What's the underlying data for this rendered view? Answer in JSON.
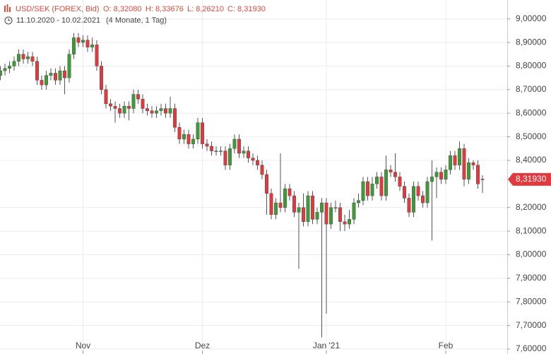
{
  "header": {
    "symbol": "USD/SEK (FOREX, Bid)",
    "open": "O: 8,32080",
    "high": "H: 8,33676",
    "low": "L: 8,26210",
    "close": "C: 8,31930",
    "range": "11.10.2020 - 10.02.2021",
    "duration": "(4 Monate, 1 Tag)"
  },
  "chart_data": {
    "type": "candlestick",
    "categories": [
      null,
      null,
      null,
      null,
      null,
      null,
      null,
      null,
      null,
      null,
      null,
      null,
      null,
      null,
      null,
      null,
      null,
      null,
      "Nov",
      null,
      null,
      null,
      null,
      null,
      null,
      null,
      null,
      null,
      null,
      null,
      null,
      null,
      null,
      null,
      null,
      null,
      null,
      null,
      null,
      null,
      null,
      null,
      null,
      null,
      "Dez",
      null,
      null,
      null,
      null,
      null,
      null,
      null,
      null,
      null,
      null,
      null,
      null,
      null,
      null,
      null,
      null,
      null,
      null,
      null,
      null,
      null,
      null,
      null,
      null,
      null,
      null,
      "Jan '21",
      null,
      null,
      null,
      null,
      null,
      null,
      null,
      null,
      null,
      null,
      null,
      null,
      null,
      null,
      null,
      null,
      null,
      null,
      null,
      null,
      null,
      null,
      null,
      null,
      null,
      "Feb",
      null,
      null,
      null,
      null,
      null,
      null,
      null,
      null
    ],
    "open": [
      8.76,
      8.78,
      8.79,
      8.8,
      8.82,
      8.85,
      8.83,
      8.84,
      8.82,
      8.74,
      8.72,
      8.76,
      8.77,
      8.74,
      8.78,
      8.75,
      8.85,
      8.92,
      8.9,
      8.91,
      8.88,
      8.89,
      8.8,
      8.7,
      8.64,
      8.63,
      8.62,
      8.6,
      8.63,
      8.62,
      8.68,
      8.66,
      8.62,
      8.61,
      8.6,
      8.61,
      8.62,
      8.6,
      8.62,
      8.54,
      8.49,
      8.51,
      8.47,
      8.49,
      8.56,
      8.47,
      8.46,
      8.44,
      8.44,
      8.44,
      8.38,
      8.45,
      8.49,
      8.43,
      8.44,
      8.41,
      8.4,
      8.38,
      8.34,
      8.26,
      8.17,
      8.22,
      8.2,
      8.28,
      8.25,
      8.18,
      8.2,
      8.14,
      8.25,
      8.15,
      8.18,
      8.22,
      8.13,
      8.2,
      8.2,
      8.14,
      8.13,
      8.15,
      8.22,
      8.23,
      8.31,
      8.25,
      8.3,
      8.33,
      8.25,
      8.36,
      8.35,
      8.33,
      8.29,
      8.24,
      8.18,
      8.29,
      8.25,
      8.22,
      8.31,
      8.33,
      8.35,
      8.32,
      8.36,
      8.42,
      8.38,
      8.45,
      8.32,
      8.39,
      8.38,
      8.3208
    ],
    "high": [
      8.8,
      8.81,
      8.82,
      8.84,
      8.87,
      8.87,
      8.86,
      8.86,
      8.84,
      8.76,
      8.78,
      8.79,
      8.79,
      8.8,
      8.8,
      8.87,
      8.94,
      8.94,
      8.93,
      8.93,
      8.92,
      8.91,
      8.82,
      8.72,
      8.66,
      8.65,
      8.64,
      8.65,
      8.65,
      8.7,
      8.7,
      8.68,
      8.64,
      8.63,
      8.63,
      8.64,
      8.64,
      8.67,
      8.64,
      8.56,
      8.53,
      8.53,
      8.51,
      8.58,
      8.58,
      8.49,
      8.48,
      8.46,
      8.46,
      8.46,
      8.47,
      8.51,
      8.51,
      8.46,
      8.46,
      8.43,
      8.42,
      8.4,
      8.36,
      8.28,
      8.24,
      8.43,
      8.3,
      8.3,
      8.27,
      8.22,
      8.26,
      8.27,
      8.27,
      8.2,
      8.24,
      8.24,
      8.22,
      8.23,
      8.22,
      8.17,
      8.19,
      8.24,
      8.26,
      8.33,
      8.33,
      8.33,
      8.35,
      8.35,
      8.42,
      8.38,
      8.43,
      8.35,
      8.31,
      8.26,
      8.31,
      8.31,
      8.27,
      8.33,
      8.4,
      8.37,
      8.37,
      8.38,
      8.44,
      8.44,
      8.48,
      8.47,
      8.41,
      8.4,
      8.4,
      8.33676
    ],
    "low": [
      8.74,
      8.76,
      8.77,
      8.78,
      8.8,
      8.81,
      8.81,
      8.8,
      8.72,
      8.7,
      8.7,
      8.74,
      8.72,
      8.72,
      8.68,
      8.73,
      8.83,
      8.88,
      8.88,
      8.86,
      8.86,
      8.78,
      8.68,
      8.62,
      8.61,
      8.56,
      8.58,
      8.58,
      8.57,
      8.6,
      8.64,
      8.6,
      8.59,
      8.58,
      8.58,
      8.59,
      8.58,
      8.58,
      8.52,
      8.47,
      8.47,
      8.45,
      8.45,
      8.47,
      8.45,
      8.44,
      8.42,
      8.42,
      8.42,
      8.36,
      8.36,
      8.43,
      8.41,
      8.41,
      8.39,
      8.38,
      8.36,
      8.32,
      8.17,
      8.15,
      8.15,
      8.18,
      8.18,
      8.23,
      8.16,
      7.94,
      8.12,
      8.12,
      8.13,
      8.13,
      7.65,
      7.75,
      8.11,
      8.18,
      8.1,
      8.1,
      8.11,
      8.13,
      8.2,
      8.21,
      8.23,
      8.23,
      8.28,
      8.23,
      8.23,
      8.33,
      8.31,
      8.27,
      8.22,
      8.16,
      8.16,
      8.23,
      8.2,
      8.2,
      8.06,
      8.24,
      8.3,
      8.3,
      8.34,
      8.36,
      8.36,
      8.29,
      8.3,
      8.36,
      8.28,
      8.2621
    ],
    "close": [
      8.78,
      8.79,
      8.8,
      8.82,
      8.85,
      8.83,
      8.84,
      8.82,
      8.74,
      8.72,
      8.76,
      8.77,
      8.74,
      8.78,
      8.75,
      8.85,
      8.92,
      8.9,
      8.91,
      8.88,
      8.89,
      8.8,
      8.7,
      8.64,
      8.63,
      8.62,
      8.6,
      8.63,
      8.62,
      8.68,
      8.66,
      8.62,
      8.61,
      8.6,
      8.61,
      8.62,
      8.6,
      8.62,
      8.54,
      8.49,
      8.51,
      8.47,
      8.49,
      8.56,
      8.47,
      8.46,
      8.44,
      8.44,
      8.44,
      8.38,
      8.45,
      8.49,
      8.43,
      8.44,
      8.41,
      8.4,
      8.38,
      8.34,
      8.26,
      8.17,
      8.22,
      8.2,
      8.28,
      8.25,
      8.18,
      8.2,
      8.14,
      8.25,
      8.15,
      8.18,
      8.22,
      8.13,
      8.2,
      8.2,
      8.14,
      8.13,
      8.15,
      8.22,
      8.23,
      8.31,
      8.25,
      8.3,
      8.33,
      8.25,
      8.36,
      8.35,
      8.33,
      8.29,
      8.24,
      8.18,
      8.29,
      8.25,
      8.22,
      8.31,
      8.33,
      8.35,
      8.32,
      8.36,
      8.42,
      8.38,
      8.45,
      8.32,
      8.39,
      8.38,
      8.3,
      8.3193
    ],
    "up_color": "#3d9a36",
    "down_color": "#e0393e",
    "ylim": [
      7.6,
      9.08
    ],
    "yticks": [
      {
        "value": 7.6,
        "label": "7,60000"
      },
      {
        "value": 7.7,
        "label": "7,70000"
      },
      {
        "value": 7.8,
        "label": "7,80000"
      },
      {
        "value": 7.9,
        "label": "7,90000"
      },
      {
        "value": 8.0,
        "label": "8,00000"
      },
      {
        "value": 8.1,
        "label": "8,10000"
      },
      {
        "value": 8.2,
        "label": "8,20000"
      },
      {
        "value": 8.4,
        "label": "8,40000"
      },
      {
        "value": 8.5,
        "label": "8,50000"
      },
      {
        "value": 8.6,
        "label": "8,60000"
      },
      {
        "value": 8.7,
        "label": "8,70000"
      },
      {
        "value": 8.8,
        "label": "8,80000"
      },
      {
        "value": 8.9,
        "label": "8,90000"
      },
      {
        "value": 9.0,
        "label": "9,00000"
      }
    ],
    "last_price": {
      "value": 8.3193,
      "label": "8,31930"
    },
    "grid": true
  }
}
